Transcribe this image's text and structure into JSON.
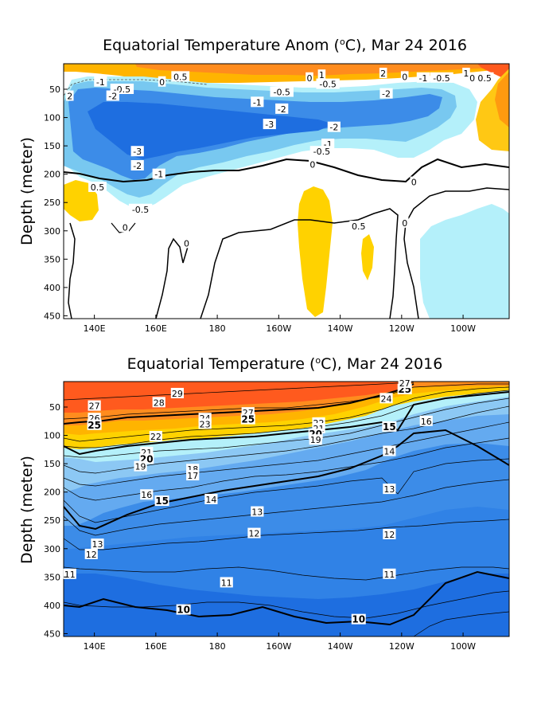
{
  "chart_data": [
    {
      "type": "contour",
      "title": "Equatorial Temperature Anom (°C), Mar 24 2016",
      "title_prefix": "Equatorial Temperature Anom (",
      "title_suffix": "C), Mar 24 2016",
      "degree_symbol": "o",
      "ylabel": "Depth (meter)",
      "xlabel": "",
      "xlim": [
        130,
        275
      ],
      "ylim": [
        455,
        5
      ],
      "xticks": [
        {
          "value": 140,
          "label": "140E"
        },
        {
          "value": 160,
          "label": "160E"
        },
        {
          "value": 180,
          "label": "180"
        },
        {
          "value": 200,
          "label": "160W"
        },
        {
          "value": 220,
          "label": "140W"
        },
        {
          "value": 240,
          "label": "120W"
        },
        {
          "value": 260,
          "label": "100W"
        }
      ],
      "yticks": [
        50,
        100,
        150,
        200,
        250,
        300,
        350,
        400,
        450
      ],
      "contour_labels": [
        {
          "text": "2",
          "x": 132,
          "y": 62
        },
        {
          "text": "-1",
          "x": 142,
          "y": 37
        },
        {
          "text": "-0.5",
          "x": 149,
          "y": 50
        },
        {
          "text": "-2",
          "x": 146,
          "y": 62
        },
        {
          "text": "0",
          "x": 162,
          "y": 37
        },
        {
          "text": "0.5",
          "x": 168,
          "y": 28
        },
        {
          "text": "-0.5",
          "x": 201,
          "y": 55
        },
        {
          "text": "-1",
          "x": 193,
          "y": 73
        },
        {
          "text": "-2",
          "x": 201,
          "y": 85
        },
        {
          "text": "-3",
          "x": 197,
          "y": 112
        },
        {
          "text": "0",
          "x": 210,
          "y": 30
        },
        {
          "text": "1",
          "x": 214,
          "y": 25
        },
        {
          "text": "-0.5",
          "x": 216,
          "y": 41
        },
        {
          "text": "-2",
          "x": 218,
          "y": 117
        },
        {
          "text": "-1",
          "x": 216,
          "y": 147
        },
        {
          "text": "-0.5",
          "x": 214,
          "y": 160
        },
        {
          "text": "0",
          "x": 211,
          "y": 183
        },
        {
          "text": "2",
          "x": 234,
          "y": 22
        },
        {
          "text": "-2",
          "x": 235,
          "y": 58
        },
        {
          "text": "0",
          "x": 241,
          "y": 28
        },
        {
          "text": "-1",
          "x": 247,
          "y": 30
        },
        {
          "text": "-0.5",
          "x": 253,
          "y": 30
        },
        {
          "text": "1",
          "x": 261,
          "y": 22
        },
        {
          "text": "0",
          "x": 263,
          "y": 30
        },
        {
          "text": "0.5",
          "x": 267,
          "y": 30
        },
        {
          "text": "-3",
          "x": 154,
          "y": 160
        },
        {
          "text": "-2",
          "x": 154,
          "y": 185
        },
        {
          "text": "-1",
          "x": 161,
          "y": 200
        },
        {
          "text": "0.5",
          "x": 141,
          "y": 223
        },
        {
          "text": "-0.5",
          "x": 155,
          "y": 262
        },
        {
          "text": "0",
          "x": 150,
          "y": 294
        },
        {
          "text": "0",
          "x": 170,
          "y": 322
        },
        {
          "text": "0.5",
          "x": 226,
          "y": 292
        },
        {
          "text": "0",
          "x": 244,
          "y": 214
        },
        {
          "text": "0",
          "x": 241,
          "y": 286
        }
      ]
    },
    {
      "type": "contour",
      "title": "Equatorial Temperature (°C), Mar 24 2016",
      "title_prefix": "Equatorial Temperature (",
      "title_suffix": "C), Mar 24 2016",
      "degree_symbol": "o",
      "ylabel": "Depth (meter)",
      "xlabel": "",
      "xlim": [
        130,
        275
      ],
      "ylim": [
        455,
        5
      ],
      "xticks": [
        {
          "value": 140,
          "label": "140E"
        },
        {
          "value": 160,
          "label": "160E"
        },
        {
          "value": 180,
          "label": "180"
        },
        {
          "value": 200,
          "label": "160W"
        },
        {
          "value": 220,
          "label": "140W"
        },
        {
          "value": 240,
          "label": "120W"
        },
        {
          "value": 260,
          "label": "100W"
        }
      ],
      "yticks": [
        50,
        100,
        150,
        200,
        250,
        300,
        350,
        400,
        450
      ],
      "contour_labels": [
        {
          "text": "29",
          "x": 167,
          "y": 26
        },
        {
          "text": "28",
          "x": 161,
          "y": 42
        },
        {
          "text": "27",
          "x": 140,
          "y": 48
        },
        {
          "text": "26",
          "x": 140,
          "y": 70
        },
        {
          "text": "25",
          "x": 140,
          "y": 82
        },
        {
          "text": "27",
          "x": 190,
          "y": 60
        },
        {
          "text": "24",
          "x": 176,
          "y": 70
        },
        {
          "text": "25",
          "x": 190,
          "y": 72
        },
        {
          "text": "23",
          "x": 176,
          "y": 80
        },
        {
          "text": "22",
          "x": 160,
          "y": 102
        },
        {
          "text": "21",
          "x": 157,
          "y": 130
        },
        {
          "text": "20",
          "x": 157,
          "y": 142
        },
        {
          "text": "19",
          "x": 155,
          "y": 155
        },
        {
          "text": "18",
          "x": 172,
          "y": 160
        },
        {
          "text": "17",
          "x": 172,
          "y": 171
        },
        {
          "text": "16",
          "x": 157,
          "y": 205
        },
        {
          "text": "15",
          "x": 162,
          "y": 216
        },
        {
          "text": "14",
          "x": 178,
          "y": 213
        },
        {
          "text": "13",
          "x": 193,
          "y": 235
        },
        {
          "text": "12",
          "x": 192,
          "y": 273
        },
        {
          "text": "13",
          "x": 141,
          "y": 292
        },
        {
          "text": "12",
          "x": 139,
          "y": 310
        },
        {
          "text": "11",
          "x": 132,
          "y": 345
        },
        {
          "text": "11",
          "x": 183,
          "y": 360
        },
        {
          "text": "10",
          "x": 169,
          "y": 408
        },
        {
          "text": "22",
          "x": 213,
          "y": 78
        },
        {
          "text": "21",
          "x": 213,
          "y": 88
        },
        {
          "text": "20",
          "x": 212,
          "y": 98
        },
        {
          "text": "19",
          "x": 212,
          "y": 108
        },
        {
          "text": "15",
          "x": 236,
          "y": 85
        },
        {
          "text": "16",
          "x": 248,
          "y": 75
        },
        {
          "text": "14",
          "x": 236,
          "y": 128
        },
        {
          "text": "13",
          "x": 236,
          "y": 195
        },
        {
          "text": "12",
          "x": 236,
          "y": 275
        },
        {
          "text": "11",
          "x": 236,
          "y": 345
        },
        {
          "text": "10",
          "x": 226,
          "y": 425
        },
        {
          "text": "24",
          "x": 235,
          "y": 35
        },
        {
          "text": "25",
          "x": 241,
          "y": 19
        },
        {
          "text": "27",
          "x": 241,
          "y": 8
        }
      ]
    }
  ]
}
